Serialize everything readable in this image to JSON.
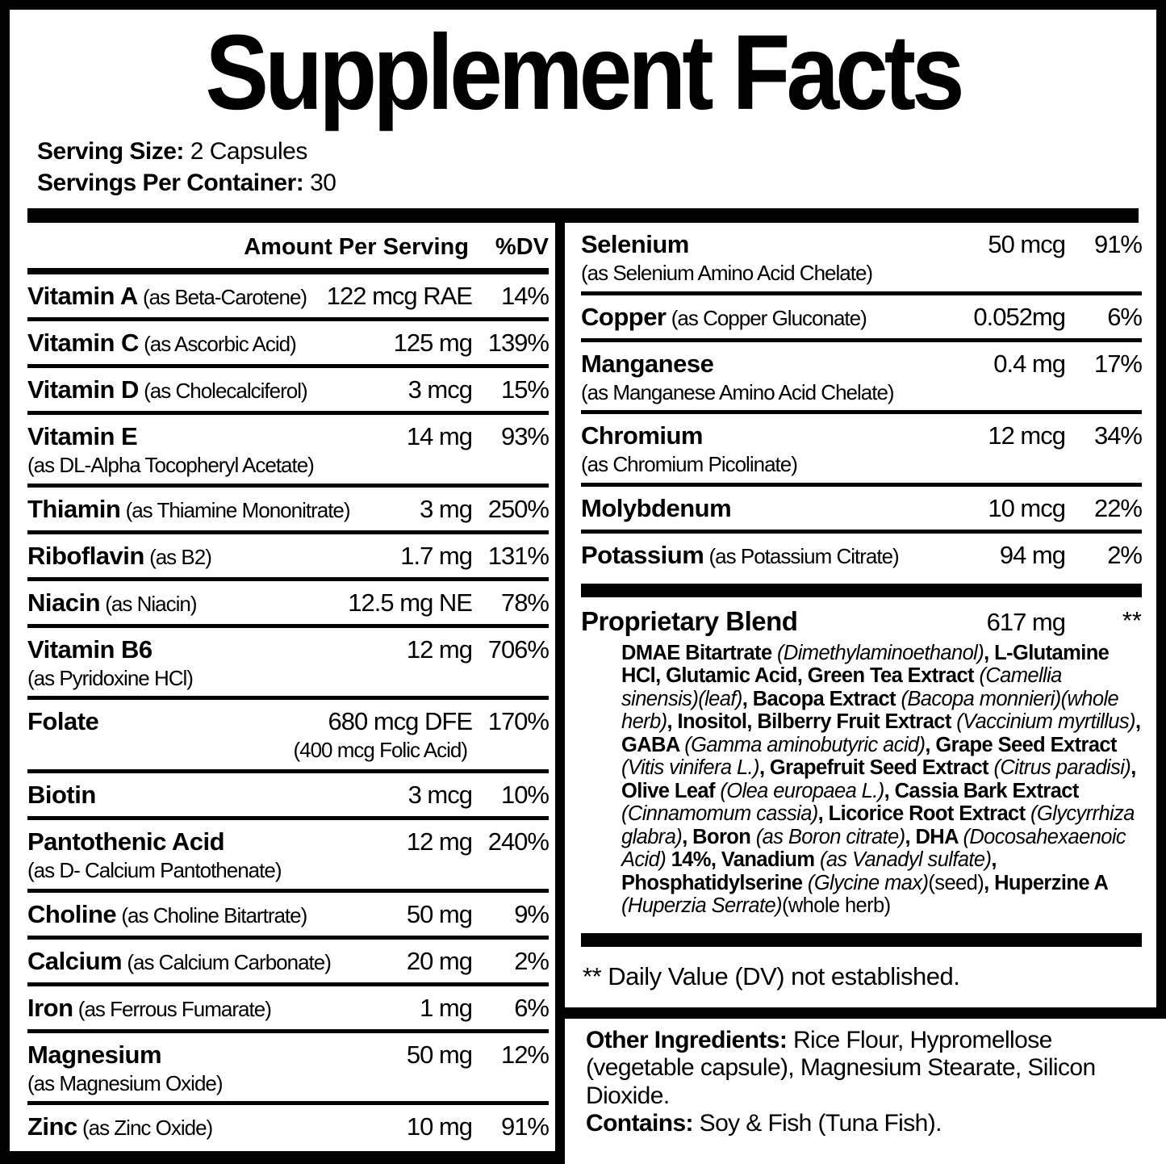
{
  "title": "Supplement Facts",
  "colors": {
    "ink": "#000000",
    "paper": "#ffffff"
  },
  "serving": {
    "size_label": "Serving Size:",
    "size_value": " 2 Capsules",
    "per_container_label": "Servings Per Container:",
    "per_container_value": " 30"
  },
  "columns_header": {
    "amount": "Amount Per Serving",
    "dv": "%DV"
  },
  "left_rows": [
    {
      "name": "Vitamin A",
      "qualifier": "(as Beta-Carotene)",
      "amount": "122 mcg RAE",
      "dv": "14%"
    },
    {
      "name": "Vitamin C",
      "qualifier": "(as Ascorbic Acid)",
      "amount": "125 mg",
      "dv": "139%"
    },
    {
      "name": "Vitamin D",
      "qualifier": "(as Cholecalciferol)",
      "amount": "3 mcg",
      "dv": "15%"
    },
    {
      "name": "Vitamin E",
      "qualifier_below": "(as DL-Alpha Tocopheryl Acetate)",
      "amount": "14 mg",
      "dv": "93%"
    },
    {
      "name": "Thiamin",
      "qualifier": "(as Thiamine Mononitrate)",
      "amount": "3 mg",
      "dv": "250%"
    },
    {
      "name": "Riboflavin",
      "qualifier": "(as B2)",
      "amount": "1.7 mg",
      "dv": "131%"
    },
    {
      "name": "Niacin",
      "qualifier": "(as Niacin)",
      "amount": "12.5 mg NE",
      "dv": "78%"
    },
    {
      "name": "Vitamin B6",
      "qualifier_below": "(as Pyridoxine HCl)",
      "amount": "12 mg",
      "dv": "706%"
    },
    {
      "name": "Folate",
      "amount": "680 mcg DFE",
      "amount_sub": "(400 mcg Folic Acid)",
      "dv": "170%"
    },
    {
      "name": "Biotin",
      "amount": "3 mcg",
      "dv": "10%"
    },
    {
      "name": "Pantothenic Acid",
      "qualifier_below": "(as D- Calcium Pantothenate)",
      "amount": "12 mg",
      "dv": "240%"
    },
    {
      "name": "Choline",
      "qualifier": "(as Choline Bitartrate)",
      "amount": "50 mg",
      "dv": "9%"
    },
    {
      "name": "Calcium",
      "qualifier": "(as Calcium Carbonate)",
      "amount": "20 mg",
      "dv": "2%"
    },
    {
      "name": "Iron",
      "qualifier": "(as Ferrous Fumarate)",
      "amount": "1 mg",
      "dv": "6%"
    },
    {
      "name": "Magnesium",
      "qualifier_below": "(as Magnesium Oxide)",
      "amount": "50 mg",
      "dv": "12%"
    },
    {
      "name": "Zinc",
      "qualifier": "(as Zinc Oxide)",
      "amount": "10 mg",
      "dv": "91%"
    }
  ],
  "right_rows": [
    {
      "name": "Selenium",
      "qualifier_below": "(as Selenium Amino Acid Chelate)",
      "amount": "50 mcg",
      "dv": "91%"
    },
    {
      "name": "Copper",
      "qualifier": "(as Copper Gluconate)",
      "amount": "0.052mg",
      "dv": "6%"
    },
    {
      "name": "Manganese",
      "qualifier_below": "(as Manganese Amino Acid Chelate)",
      "amount": "0.4 mg",
      "dv": "17%"
    },
    {
      "name": "Chromium",
      "qualifier_below": "(as Chromium Picolinate)",
      "amount": "12 mcg",
      "dv": "34%"
    },
    {
      "name": "Molybdenum",
      "amount": "10 mcg",
      "dv": "22%"
    },
    {
      "name": "Potassium",
      "qualifier": "(as Potassium Citrate)",
      "amount": "94 mg",
      "dv": "2%"
    }
  ],
  "proprietary_blend": {
    "name": "Proprietary Blend",
    "amount": "617 mg",
    "dv": "**",
    "ingredients": [
      {
        "style": "b",
        "text": "DMAE Bitartrate "
      },
      {
        "style": "i",
        "text": "(Dimethylaminoethanol)"
      },
      {
        "style": "b",
        "text": ", L-Glutamine HCl, Glutamic Acid, Green Tea Extract "
      },
      {
        "style": "i",
        "text": "(Camellia sinensis)(leaf)"
      },
      {
        "style": "b",
        "text": ", Bacopa Extract "
      },
      {
        "style": "i",
        "text": "(Bacopa monnieri)(whole herb)"
      },
      {
        "style": "b",
        "text": ", Inositol, Bilberry Fruit Extract "
      },
      {
        "style": "i",
        "text": "(Vaccinium myrtillus)"
      },
      {
        "style": "b",
        "text": ", GABA "
      },
      {
        "style": "i",
        "text": "(Gamma aminobutyric acid)"
      },
      {
        "style": "b",
        "text": ", Grape Seed Extract "
      },
      {
        "style": "i",
        "text": "(Vitis vinifera L.)"
      },
      {
        "style": "b",
        "text": ", Grapefruit Seed Extract "
      },
      {
        "style": "i",
        "text": "(Citrus paradisi)"
      },
      {
        "style": "b",
        "text": ", Olive Leaf "
      },
      {
        "style": "i",
        "text": "(Olea europaea L.)"
      },
      {
        "style": "b",
        "text": ", Cassia Bark Extract "
      },
      {
        "style": "i",
        "text": "(Cinnamomum cassia)"
      },
      {
        "style": "b",
        "text": ", Licorice Root Extract "
      },
      {
        "style": "i",
        "text": "(Glycyrrhiza glabra)"
      },
      {
        "style": "b",
        "text": ", Boron "
      },
      {
        "style": "i",
        "text": "(as Boron citrate)"
      },
      {
        "style": "b",
        "text": ", DHA "
      },
      {
        "style": "i",
        "text": "(Docosahexaenoic Acid)"
      },
      {
        "style": "b",
        "text": " 14%, Vanadium "
      },
      {
        "style": "i",
        "text": "(as Vanadyl sulfate)"
      },
      {
        "style": "b",
        "text": ", Phosphatidylserine "
      },
      {
        "style": "i",
        "text": "(Glycine max)"
      },
      {
        "style": "r",
        "text": "(seed)"
      },
      {
        "style": "b",
        "text": ", Huperzine A "
      },
      {
        "style": "i",
        "text": "(Huperzia Serrate)"
      },
      {
        "style": "r",
        "text": "(whole herb)"
      }
    ]
  },
  "footnote": "** Daily Value (DV) not established.",
  "other_ingredients": {
    "label": "Other Ingredients:",
    "text": " Rice Flour, Hypromellose (vegetable capsule), Magnesium Stearate, Silicon Dioxide.",
    "contains_label": "Contains:",
    "contains_text": " Soy & Fish (Tuna Fish)."
  }
}
